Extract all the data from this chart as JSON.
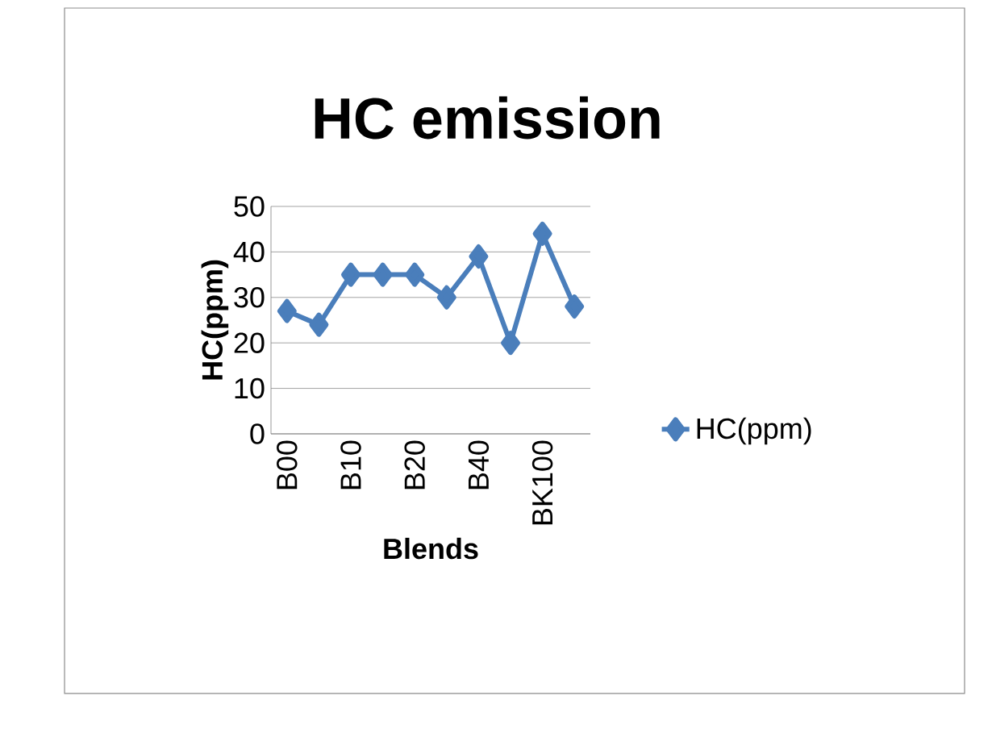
{
  "chart_data": {
    "type": "line",
    "title": "HC emission",
    "xlabel": "Blends",
    "ylabel": "HC(ppm)",
    "categories": [
      "B00",
      null,
      "B10",
      null,
      "B20",
      null,
      "B40",
      null,
      "BK100",
      null
    ],
    "series": [
      {
        "name": "HC(ppm)",
        "color": "#4a7ebb",
        "values": [
          27,
          24,
          35,
          35,
          35,
          30,
          39,
          20,
          44,
          28
        ]
      }
    ],
    "ylim": [
      0,
      50
    ],
    "yticks": [
      0,
      10,
      20,
      30,
      40,
      50
    ],
    "grid": "y",
    "legend": "right",
    "marker": "diamond",
    "line_style": "solid"
  }
}
